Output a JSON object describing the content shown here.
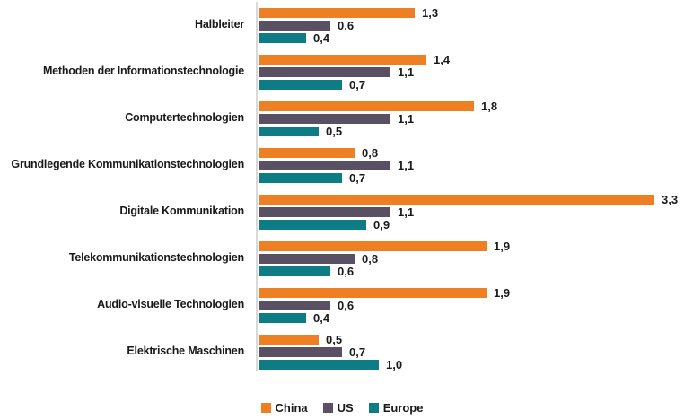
{
  "chart_data": {
    "type": "bar",
    "orientation": "horizontal",
    "title": "",
    "xlabel": "",
    "ylabel": "",
    "grid": false,
    "xlim": [
      0,
      3.3
    ],
    "value_format": "decimal-comma",
    "legend_position": "bottom",
    "axis_line_color": "#d9d9d9",
    "categories": [
      "Halbleiter",
      "Methoden der Informationstechnologie",
      "Computertechnologien",
      "Grundlegende Kommunikationstechnologien",
      "Digitale Kommunikation",
      "Telekommunikationstechnologien",
      "Audio-visuelle Technologien",
      "Elektrische Maschinen"
    ],
    "series": [
      {
        "name": "China",
        "color": "#EE8023",
        "values": [
          1.3,
          1.4,
          1.8,
          0.8,
          3.3,
          1.9,
          1.9,
          0.5
        ],
        "labels": [
          "1,3",
          "1,4",
          "1,8",
          "0,8",
          "3,3",
          "1,9",
          "1,9",
          "0,5"
        ]
      },
      {
        "name": "US",
        "color": "#595064",
        "values": [
          0.6,
          1.1,
          1.1,
          1.1,
          1.1,
          0.8,
          0.6,
          0.7
        ],
        "labels": [
          "0,6",
          "1,1",
          "1,1",
          "1,1",
          "1,1",
          "0,8",
          "0,6",
          "0,7"
        ]
      },
      {
        "name": "Europe",
        "color": "#0E7C85",
        "values": [
          0.4,
          0.7,
          0.5,
          0.7,
          0.9,
          0.6,
          0.4,
          1.0
        ],
        "labels": [
          "0,4",
          "0,7",
          "0,5",
          "0,7",
          "0,9",
          "0,6",
          "0,4",
          "1,0"
        ]
      }
    ]
  }
}
